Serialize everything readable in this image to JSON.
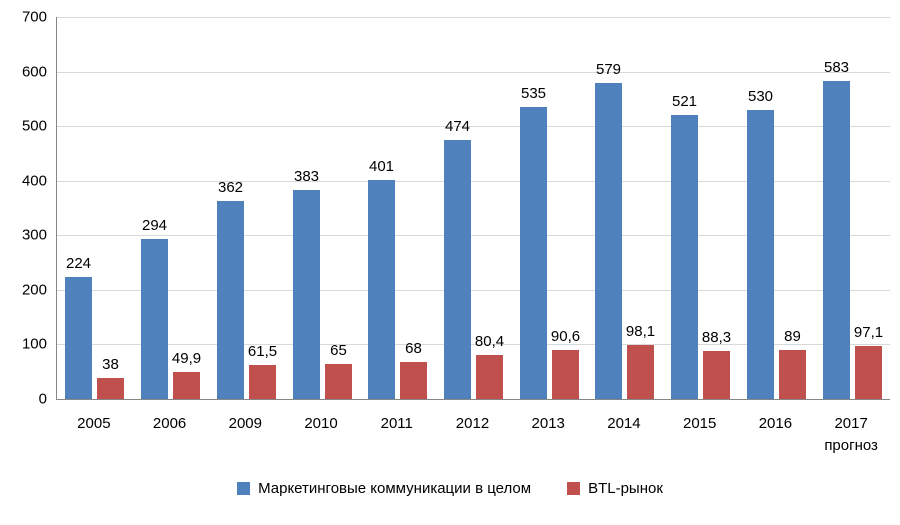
{
  "chart_data": {
    "type": "bar",
    "title": "",
    "categories": [
      {
        "label": "2005"
      },
      {
        "label": "2006"
      },
      {
        "label": "2009"
      },
      {
        "label": "2010"
      },
      {
        "label": "2011"
      },
      {
        "label": "2012"
      },
      {
        "label": "2013"
      },
      {
        "label": "2014"
      },
      {
        "label": "2015"
      },
      {
        "label": "2016"
      },
      {
        "label": "2017",
        "sub": "прогноз"
      }
    ],
    "series": [
      {
        "name": "Маркетинговые коммуникации в целом",
        "color": "#4f81bd",
        "values": [
          224,
          294,
          362,
          383,
          401,
          474,
          535,
          579,
          521,
          530,
          583
        ],
        "labels": [
          "224",
          "294",
          "362",
          "383",
          "401",
          "474",
          "535",
          "579",
          "521",
          "530",
          "583"
        ]
      },
      {
        "name": "BTL-рынок",
        "color": "#c0504d",
        "values": [
          38,
          49.9,
          61.5,
          65,
          68,
          80.4,
          90.6,
          98.1,
          88.3,
          89,
          97.1
        ],
        "labels": [
          "38",
          "49,9",
          "61,5",
          "65",
          "68",
          "80,4",
          "90,6",
          "98,1",
          "88,3",
          "89",
          "97,1"
        ]
      }
    ],
    "ylim": [
      0,
      700
    ],
    "yticks": [
      0,
      100,
      200,
      300,
      400,
      500,
      600,
      700
    ],
    "grid": true,
    "legend_position": "bottom",
    "grid_color": "#d9d9d9",
    "axis_color": "#868686",
    "text_color": "#000000",
    "background_color": "#ffffff"
  }
}
